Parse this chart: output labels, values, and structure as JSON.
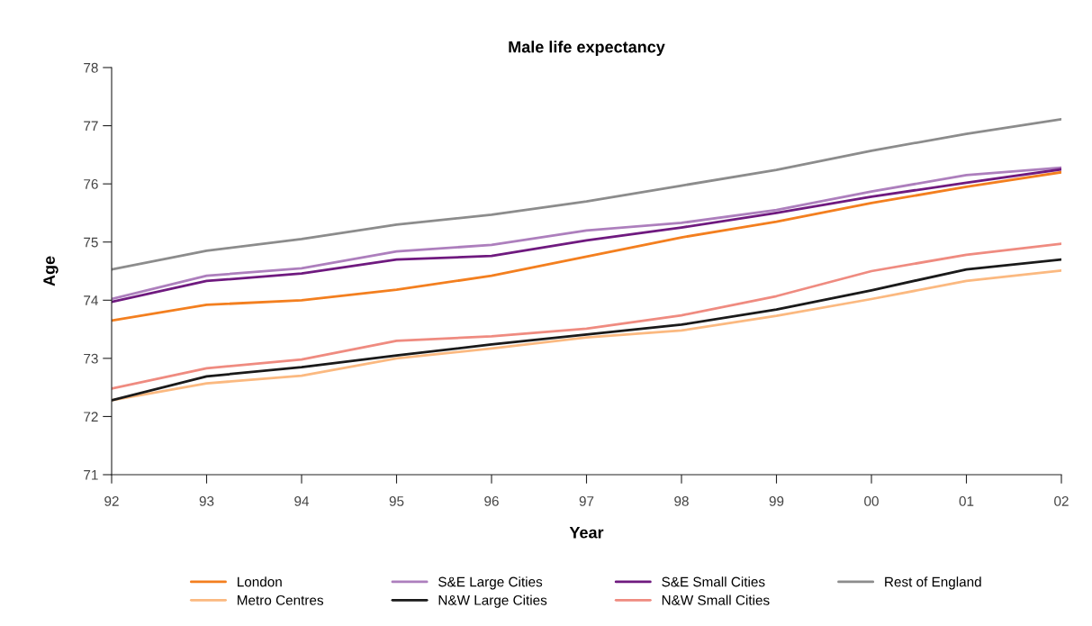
{
  "chart_data": {
    "type": "line",
    "title": "Male life expectancy",
    "xlabel": "Year",
    "ylabel": "Age",
    "categories": [
      "92",
      "93",
      "94",
      "95",
      "96",
      "97",
      "98",
      "99",
      "00",
      "01",
      "02"
    ],
    "ylim": [
      71,
      78
    ],
    "yticks": [
      71,
      72,
      73,
      74,
      75,
      76,
      77,
      78
    ],
    "grid": false,
    "legend": "bottom",
    "marker": "none",
    "line_style": "solid",
    "series": [
      {
        "name": "London",
        "color": "#f37f1f",
        "values": [
          73.65,
          73.92,
          74.0,
          74.18,
          74.42,
          74.75,
          75.08,
          75.35,
          75.67,
          75.95,
          76.2
        ]
      },
      {
        "name": "S&E Large Cities",
        "color": "#ad7fbd",
        "values": [
          74.02,
          74.42,
          74.55,
          74.84,
          74.95,
          75.2,
          75.33,
          75.55,
          75.87,
          76.15,
          76.28
        ]
      },
      {
        "name": "S&E Small Cities",
        "color": "#6f1a7f",
        "values": [
          73.97,
          74.33,
          74.46,
          74.7,
          74.76,
          75.03,
          75.25,
          75.5,
          75.78,
          76.02,
          76.25
        ]
      },
      {
        "name": "Rest of England",
        "color": "#8c8c8c",
        "values": [
          74.53,
          74.85,
          75.05,
          75.3,
          75.47,
          75.7,
          75.97,
          76.24,
          76.57,
          76.86,
          77.11
        ]
      },
      {
        "name": "Metro Centres",
        "color": "#fbb980",
        "values": [
          72.28,
          72.57,
          72.7,
          73.0,
          73.17,
          73.36,
          73.48,
          73.73,
          74.02,
          74.33,
          74.51
        ]
      },
      {
        "name": "N&W Large Cities",
        "color": "#1a1a1a",
        "values": [
          72.28,
          72.69,
          72.85,
          73.05,
          73.24,
          73.41,
          73.58,
          73.84,
          74.17,
          74.53,
          74.7
        ]
      },
      {
        "name": "N&W Small Cities",
        "color": "#ef8b80",
        "values": [
          72.48,
          72.83,
          72.98,
          73.3,
          73.38,
          73.51,
          73.74,
          74.07,
          74.5,
          74.78,
          74.97
        ]
      }
    ]
  }
}
